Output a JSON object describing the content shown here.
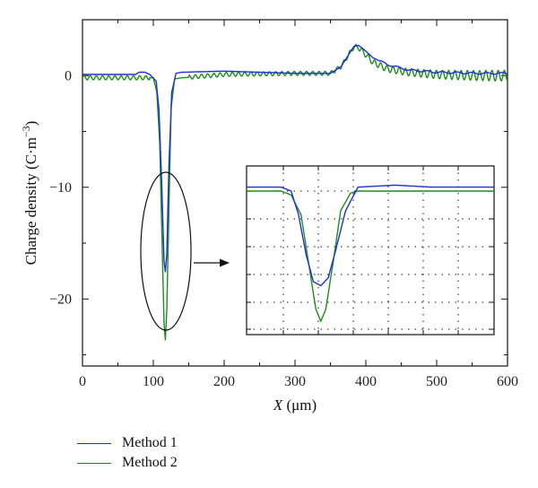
{
  "chart_data": {
    "type": "line",
    "xlabel_var": "X",
    "xlabel_unit": "(μm)",
    "ylabel_main": "Charge density (C·m",
    "ylabel_exp": "−3",
    "ylabel_close": ")",
    "xlim": [
      0,
      600
    ],
    "ylim": [
      -26,
      5
    ],
    "x_ticks": [
      0,
      100,
      200,
      300,
      400,
      500,
      600
    ],
    "y_ticks": [
      0,
      -10,
      -20
    ],
    "colors": {
      "method1": "#1f2fd6",
      "method2": "#1e8c1e"
    },
    "series": [
      {
        "name": "Method 1",
        "x": [
          0,
          75,
          80,
          88,
          95,
          104,
          108,
          112,
          115,
          117,
          119,
          122,
          126,
          132,
          140,
          200,
          300,
          350,
          365,
          375,
          383,
          390,
          398,
          410,
          430,
          460,
          500,
          560,
          600
        ],
        "y": [
          0.1,
          0.1,
          0.3,
          0.3,
          0.1,
          -0.5,
          -3,
          -10,
          -16.5,
          -17.6,
          -16,
          -8,
          -1.5,
          0.2,
          0.3,
          0.4,
          0.2,
          0.2,
          0.8,
          1.8,
          2.6,
          2.7,
          2.3,
          1.6,
          1.0,
          0.5,
          0.3,
          0.2,
          0.2
        ]
      },
      {
        "name": "Method 2",
        "x": [
          0,
          100,
          105,
          109,
          112,
          115,
          117,
          119,
          122,
          125,
          130,
          140,
          200,
          300,
          350,
          365,
          375,
          383,
          390,
          398,
          410,
          430,
          460,
          500,
          560,
          600
        ],
        "y": [
          -0.2,
          -0.2,
          -1.5,
          -6,
          -14,
          -22,
          -23.7,
          -21,
          -12,
          -3,
          -0.3,
          -0.2,
          0.1,
          0.2,
          0.2,
          0.8,
          1.8,
          2.6,
          2.5,
          2.0,
          1.2,
          0.6,
          0.3,
          0.1,
          0.0,
          0.0
        ]
      }
    ],
    "inset": {
      "method1_x": [
        0,
        14,
        18,
        21,
        24,
        27,
        30,
        33,
        36,
        40,
        45,
        60,
        75,
        87,
        100
      ],
      "method1_y": [
        0.1,
        0.1,
        0.0,
        -0.6,
        -1.6,
        -2.3,
        -2.4,
        -2.2,
        -1.5,
        -0.5,
        0.1,
        0.15,
        0.1,
        0.1,
        0.1
      ],
      "method2_x": [
        0,
        14,
        18,
        22,
        25,
        28,
        30,
        32,
        35,
        38,
        42,
        45,
        60,
        75,
        87,
        100
      ],
      "method2_y": [
        0.0,
        0.0,
        -0.1,
        -0.6,
        -1.8,
        -3.0,
        -3.3,
        -3.0,
        -1.8,
        -0.5,
        -0.05,
        0.0,
        0.0,
        0.0,
        0.0,
        0.0
      ]
    }
  }
}
